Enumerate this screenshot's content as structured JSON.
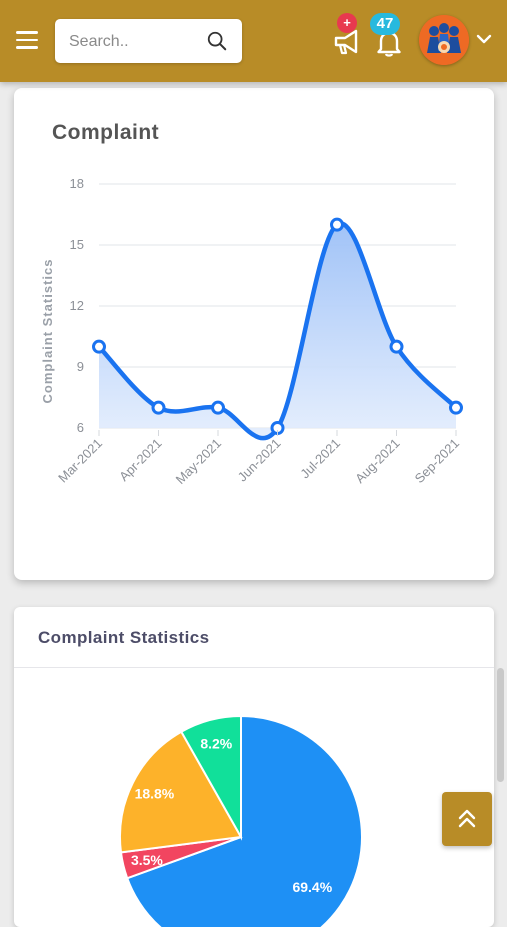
{
  "header": {
    "search": {
      "placeholder": "Search..",
      "value": ""
    },
    "icons": {
      "menu": "menu-icon",
      "search": "search-icon",
      "announcement": "megaphone-icon",
      "notification": "bell-icon",
      "profile": "avatar",
      "dropdown": "chevron-down-icon"
    },
    "announcement_badge": "+",
    "notification_count": "47"
  },
  "complaint_card": {
    "title": "Complaint",
    "chart_data": {
      "type": "area",
      "title": "Complaint",
      "ylabel": "Complaint Statistics",
      "xlabel": "",
      "categories": [
        "Mar-2021",
        "Apr-2021",
        "May-2021",
        "Jun-2021",
        "Jul-2021",
        "Aug-2021",
        "Sep-2021"
      ],
      "values": [
        10,
        7,
        7,
        6,
        16,
        10,
        7
      ],
      "ylim": [
        6,
        18
      ],
      "yticks": [
        "6",
        "9",
        "12",
        "15",
        "18"
      ],
      "grid": true,
      "colors": {
        "line": "#1a73f0",
        "fill": "#c9dcfb"
      }
    }
  },
  "stats_card": {
    "title": "Complaint Statistics",
    "chart_data": {
      "type": "pie",
      "values": [
        69.4,
        3.5,
        18.8,
        8.2
      ],
      "labels": [
        "69.4%",
        "3.5%",
        "18.8%",
        "8.2%"
      ],
      "colors": [
        "#1e90f5",
        "#f24560",
        "#fdb22a",
        "#11e09a"
      ],
      "start_angle": 0
    }
  },
  "scroll_top_icon": "double-chevron-up-icon"
}
